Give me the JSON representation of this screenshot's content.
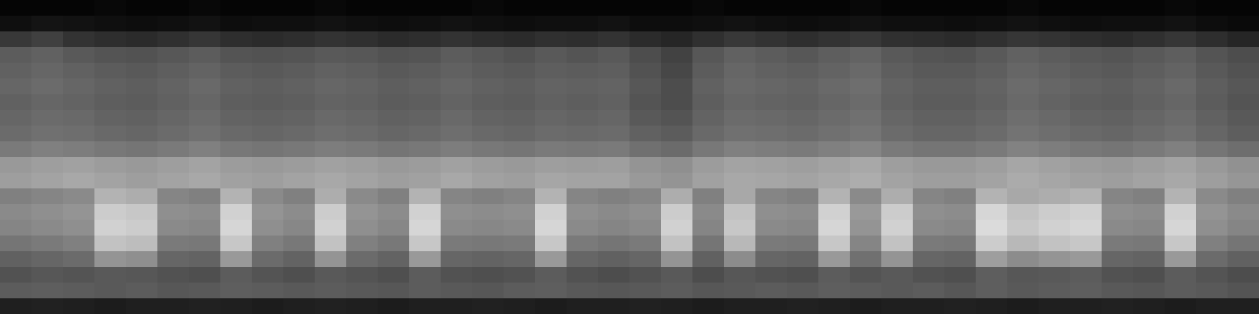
{
  "chart_data": {
    "type": "heatmap",
    "tick_labels": false,
    "zlim": [
      0,
      100
    ],
    "cells": [
      [
        2,
        2,
        2,
        3,
        2,
        2,
        3,
        2,
        2,
        2,
        3,
        2,
        2,
        2,
        2,
        3,
        2,
        2,
        2,
        2,
        2,
        2,
        3,
        2,
        2,
        2,
        2,
        3,
        2,
        2,
        2,
        2,
        3,
        2,
        2,
        2,
        2,
        3,
        2,
        2
      ],
      [
        6,
        8,
        7,
        6,
        5,
        6,
        7,
        5,
        6,
        6,
        7,
        6,
        5,
        6,
        7,
        6,
        5,
        6,
        6,
        7,
        5,
        5,
        6,
        7,
        6,
        5,
        6,
        7,
        6,
        6,
        5,
        6,
        7,
        6,
        5,
        6,
        6,
        7,
        5,
        4
      ],
      [
        22,
        25,
        20,
        18,
        17,
        19,
        21,
        18,
        17,
        18,
        20,
        19,
        17,
        18,
        20,
        18,
        17,
        19,
        18,
        20,
        17,
        15,
        19,
        22,
        20,
        18,
        20,
        22,
        19,
        18,
        17,
        19,
        21,
        20,
        18,
        17,
        19,
        21,
        18,
        15
      ],
      [
        36,
        38,
        35,
        33,
        32,
        34,
        36,
        33,
        32,
        33,
        35,
        34,
        32,
        33,
        36,
        34,
        32,
        35,
        33,
        35,
        30,
        26,
        34,
        38,
        36,
        34,
        37,
        39,
        35,
        33,
        32,
        35,
        38,
        36,
        34,
        33,
        35,
        37,
        33,
        30
      ],
      [
        38,
        40,
        38,
        36,
        35,
        37,
        39,
        36,
        35,
        36,
        38,
        37,
        35,
        36,
        38,
        36,
        35,
        37,
        36,
        37,
        32,
        28,
        36,
        40,
        38,
        37,
        39,
        41,
        37,
        35,
        35,
        37,
        40,
        38,
        36,
        35,
        37,
        39,
        35,
        32
      ],
      [
        40,
        42,
        40,
        38,
        37,
        39,
        41,
        38,
        37,
        38,
        40,
        39,
        37,
        38,
        40,
        38,
        37,
        39,
        38,
        39,
        34,
        30,
        38,
        41,
        40,
        39,
        41,
        43,
        39,
        37,
        37,
        39,
        42,
        40,
        38,
        37,
        39,
        41,
        37,
        34
      ],
      [
        38,
        40,
        39,
        37,
        36,
        38,
        40,
        37,
        36,
        37,
        39,
        38,
        36,
        37,
        39,
        37,
        36,
        38,
        37,
        38,
        33,
        30,
        37,
        40,
        39,
        38,
        40,
        42,
        38,
        36,
        36,
        38,
        41,
        39,
        37,
        36,
        38,
        40,
        36,
        33
      ],
      [
        40,
        42,
        41,
        39,
        38,
        40,
        42,
        39,
        38,
        39,
        41,
        40,
        38,
        39,
        41,
        39,
        38,
        40,
        39,
        40,
        35,
        33,
        39,
        42,
        41,
        40,
        42,
        44,
        40,
        38,
        38,
        40,
        43,
        41,
        39,
        38,
        40,
        42,
        38,
        35
      ],
      [
        42,
        44,
        43,
        41,
        40,
        42,
        44,
        41,
        40,
        41,
        43,
        42,
        40,
        41,
        43,
        41,
        40,
        42,
        41,
        42,
        38,
        36,
        41,
        44,
        43,
        42,
        44,
        46,
        42,
        40,
        40,
        42,
        45,
        43,
        41,
        40,
        42,
        44,
        40,
        37
      ],
      [
        48,
        50,
        49,
        47,
        46,
        48,
        50,
        47,
        46,
        47,
        49,
        48,
        46,
        47,
        49,
        47,
        46,
        48,
        47,
        48,
        44,
        42,
        47,
        50,
        49,
        48,
        50,
        52,
        48,
        46,
        46,
        48,
        51,
        49,
        47,
        46,
        48,
        50,
        46,
        43
      ],
      [
        60,
        62,
        63,
        61,
        60,
        62,
        64,
        61,
        60,
        61,
        63,
        62,
        60,
        61,
        63,
        61,
        60,
        62,
        61,
        62,
        58,
        56,
        61,
        64,
        63,
        62,
        64,
        66,
        62,
        60,
        60,
        62,
        65,
        63,
        61,
        60,
        62,
        64,
        60,
        57
      ],
      [
        62,
        64,
        66,
        64,
        62,
        64,
        66,
        63,
        62,
        64,
        66,
        64,
        62,
        63,
        66,
        63,
        62,
        65,
        64,
        64,
        60,
        58,
        63,
        66,
        65,
        64,
        66,
        68,
        64,
        62,
        62,
        64,
        67,
        65,
        63,
        62,
        64,
        66,
        62,
        59
      ],
      [
        50,
        52,
        54,
        70,
        68,
        52,
        50,
        70,
        54,
        50,
        68,
        54,
        50,
        70,
        52,
        50,
        52,
        70,
        52,
        50,
        52,
        68,
        50,
        66,
        52,
        50,
        70,
        54,
        68,
        52,
        50,
        70,
        66,
        68,
        70,
        52,
        50,
        70,
        54,
        50
      ],
      [
        54,
        56,
        58,
        80,
        78,
        56,
        55,
        82,
        58,
        55,
        80,
        58,
        55,
        82,
        56,
        55,
        56,
        82,
        56,
        54,
        56,
        80,
        54,
        76,
        56,
        55,
        82,
        60,
        80,
        56,
        55,
        84,
        76,
        80,
        82,
        56,
        55,
        82,
        58,
        54
      ],
      [
        52,
        54,
        56,
        82,
        80,
        54,
        53,
        84,
        56,
        53,
        82,
        56,
        53,
        84,
        54,
        53,
        54,
        84,
        54,
        52,
        54,
        82,
        52,
        78,
        54,
        53,
        84,
        58,
        82,
        54,
        53,
        86,
        78,
        82,
        84,
        54,
        53,
        84,
        56,
        52
      ],
      [
        46,
        48,
        50,
        76,
        74,
        48,
        47,
        78,
        50,
        47,
        76,
        50,
        47,
        78,
        48,
        47,
        48,
        78,
        48,
        46,
        48,
        76,
        46,
        72,
        48,
        47,
        78,
        52,
        76,
        48,
        47,
        80,
        72,
        76,
        78,
        48,
        47,
        78,
        50,
        46
      ],
      [
        38,
        40,
        42,
        58,
        56,
        40,
        39,
        60,
        42,
        39,
        58,
        42,
        39,
        60,
        40,
        39,
        40,
        60,
        40,
        38,
        40,
        58,
        38,
        55,
        40,
        39,
        60,
        44,
        58,
        40,
        39,
        62,
        55,
        58,
        60,
        40,
        39,
        60,
        42,
        38
      ],
      [
        32,
        34,
        33,
        35,
        34,
        32,
        31,
        36,
        33,
        31,
        35,
        33,
        31,
        36,
        32,
        31,
        32,
        36,
        32,
        30,
        32,
        35,
        30,
        34,
        32,
        31,
        36,
        33,
        35,
        32,
        31,
        37,
        34,
        35,
        36,
        32,
        31,
        36,
        33,
        30
      ],
      [
        36,
        37,
        36,
        35,
        36,
        34,
        35,
        37,
        36,
        35,
        36,
        35,
        34,
        36,
        35,
        34,
        36,
        37,
        35,
        34,
        35,
        36,
        34,
        35,
        36,
        35,
        37,
        36,
        35,
        36,
        34,
        37,
        35,
        36,
        37,
        35,
        34,
        36,
        35,
        33
      ],
      [
        12,
        13,
        12,
        11,
        12,
        12,
        13,
        12,
        11,
        12,
        13,
        12,
        11,
        12,
        12,
        13,
        12,
        11,
        12,
        12,
        13,
        12,
        11,
        12,
        12,
        13,
        12,
        11,
        12,
        12,
        13,
        12,
        11,
        12,
        12,
        13,
        12,
        11,
        12,
        12
      ]
    ]
  }
}
